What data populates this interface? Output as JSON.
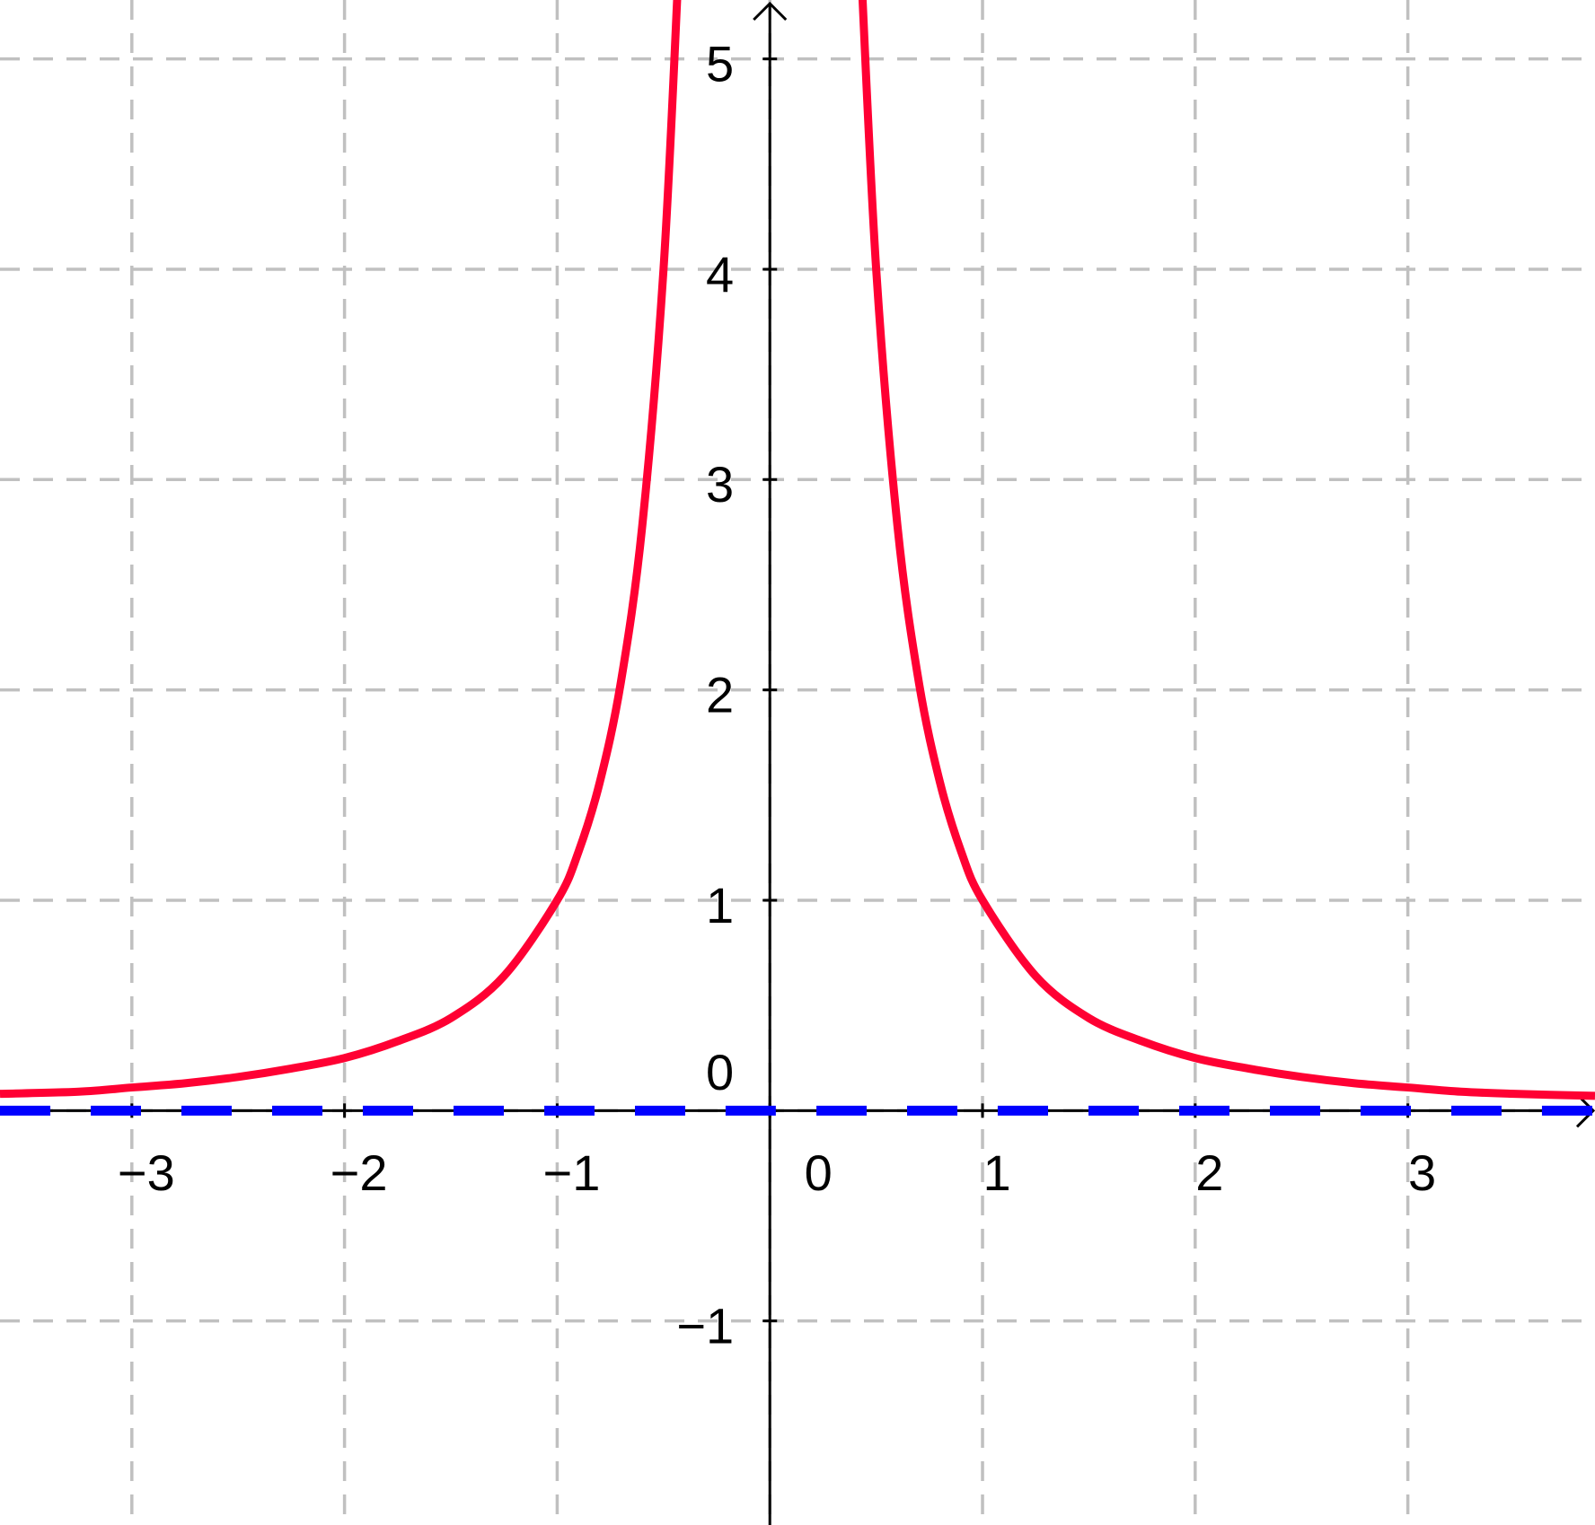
{
  "chart_data": {
    "type": "line",
    "x": [
      -3.62,
      -3.25,
      -3,
      -2.75,
      -2.5,
      -2.25,
      -2,
      -1.75,
      -1.5,
      -1.25,
      -1,
      -0.9,
      -0.8,
      -0.7,
      -0.6,
      -0.5,
      -0.43,
      0,
      0.43,
      0.5,
      0.6,
      0.7,
      0.8,
      0.9,
      1,
      1.25,
      1.5,
      1.75,
      2,
      2.25,
      2.5,
      2.75,
      3,
      3.25,
      3.5,
      3.88
    ],
    "series": [
      {
        "color": "#ff0033",
        "dashed": false,
        "values": [
          0.08,
          0.09,
          0.11,
          0.13,
          0.16,
          0.2,
          0.25,
          0.33,
          0.44,
          0.64,
          1,
          1.23,
          1.56,
          2.04,
          2.78,
          4,
          5.41,
          null,
          5.41,
          4,
          2.78,
          2.04,
          1.56,
          1.23,
          1,
          0.64,
          0.44,
          0.33,
          0.25,
          0.2,
          0.16,
          0.13,
          0.11,
          0.09,
          0.08,
          0.07
        ]
      },
      {
        "color": "#0000ff",
        "dashed": true,
        "values": [
          0,
          0,
          0,
          0,
          0,
          0,
          0,
          0,
          0,
          0,
          0,
          0,
          0,
          0,
          0,
          0,
          0,
          0,
          0,
          0,
          0,
          0,
          0,
          0,
          0,
          0,
          0,
          0,
          0,
          0,
          0,
          0,
          0,
          0,
          0,
          0
        ]
      }
    ],
    "xlim": [
      -3.62,
      3.88
    ],
    "ylim": [
      -1.97,
      5.28
    ],
    "xticks": [
      {
        "value": -3,
        "label": "−3"
      },
      {
        "value": -2,
        "label": "−2"
      },
      {
        "value": -1,
        "label": "−1"
      },
      0,
      1,
      2,
      3
    ],
    "yticks": [
      {
        "value": -1,
        "label": "−1"
      },
      0,
      1,
      2,
      3,
      4,
      5
    ],
    "grid": true
  }
}
